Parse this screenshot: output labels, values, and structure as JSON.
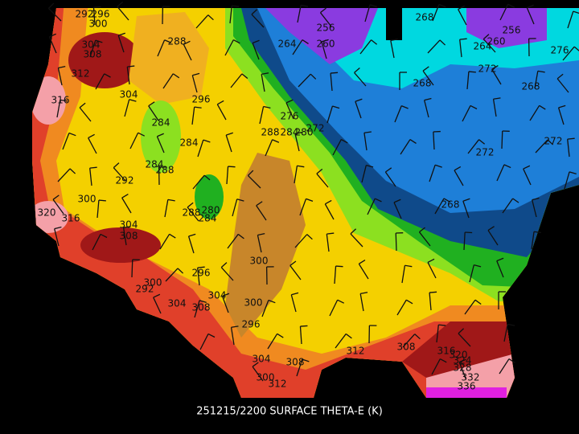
{
  "caption": "251215/2200 SURFACE THETA-E (K)",
  "contour_labels": [
    "292",
    "296",
    "300",
    "304",
    "308",
    "312",
    "316",
    "288",
    "296",
    "304",
    "284",
    "284",
    "284",
    "288",
    "292",
    "300",
    "320",
    "316",
    "304",
    "308",
    "280",
    "284",
    "288",
    "300",
    "296",
    "292",
    "300",
    "304",
    "308",
    "304",
    "300",
    "296",
    "304",
    "308",
    "312",
    "300",
    "312",
    "308",
    "316",
    "320",
    "324",
    "328",
    "332",
    "336",
    "256",
    "260",
    "264",
    "268",
    "256",
    "260",
    "264",
    "272",
    "276",
    "268",
    "268",
    "276",
    "272",
    "288",
    "284",
    "280",
    "272",
    "272",
    "268"
  ]
}
